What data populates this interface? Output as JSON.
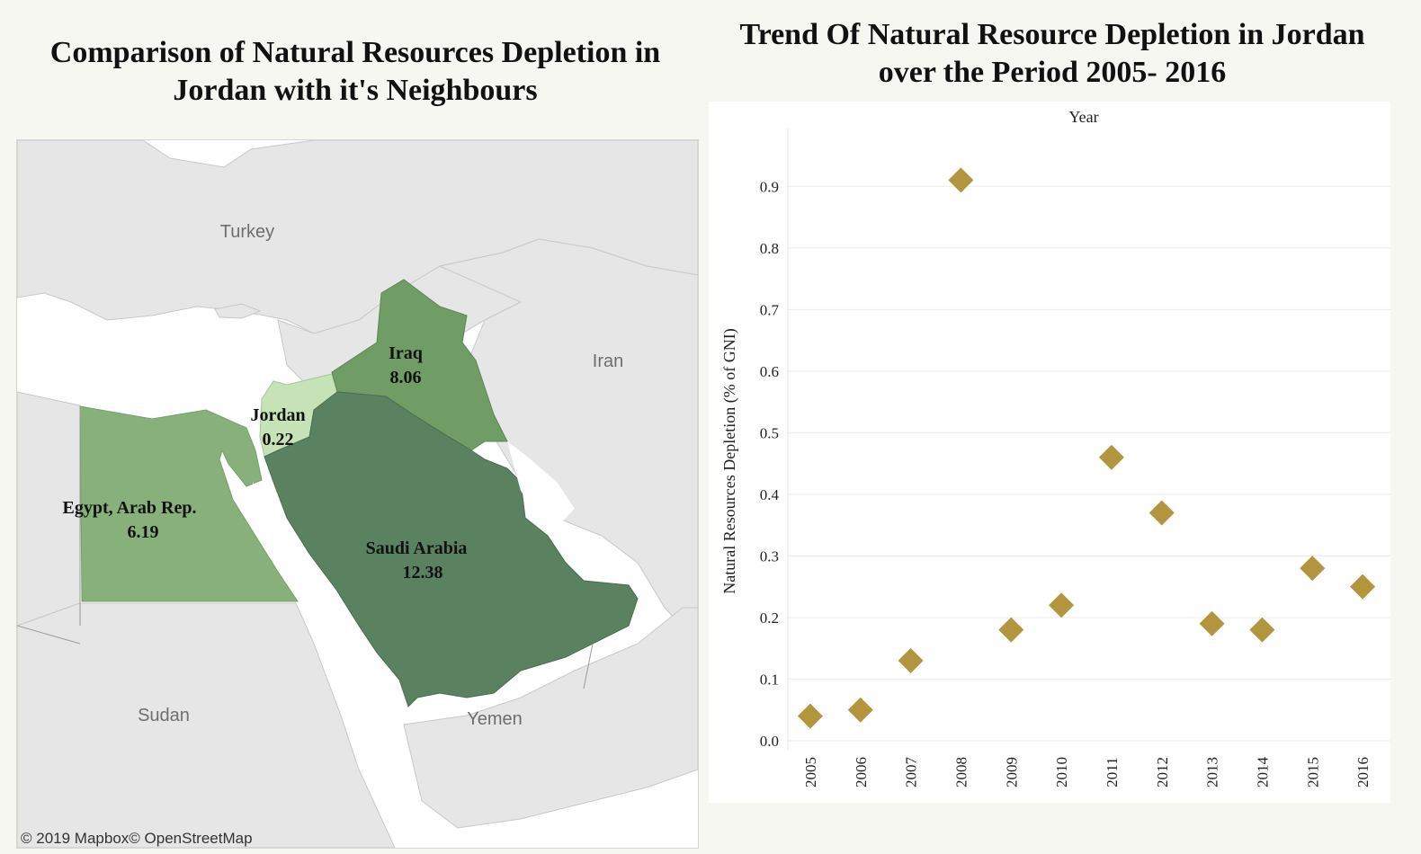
{
  "map": {
    "title": "Comparison of Natural Resources Depletion in Jordan with it's Neighbours",
    "base_labels": {
      "turkey": "Turkey",
      "iran": "Iran",
      "sudan": "Sudan",
      "yemen": "Yemen"
    },
    "attribution": "© 2019 Mapbox© OpenStreetMap",
    "regions": [
      {
        "name": "Iraq",
        "value": "8.06",
        "color": "#6f9d65"
      },
      {
        "name": "Jordan",
        "value": "0.22",
        "color": "#c6e2b7"
      },
      {
        "name": "Egypt, Arab Rep.",
        "value": "6.19",
        "color": "#88b07a"
      },
      {
        "name": "Saudi Arabia",
        "value": "12.38",
        "color": "#5a8160"
      }
    ]
  },
  "chart_data": {
    "type": "scatter",
    "title": "Trend Of Natural Resource Depletion in Jordan over the Period 2005- 2016",
    "xlabel": "Year",
    "ylabel": "Natural Resources Depletion (% of GNI)",
    "categories": [
      "2005",
      "2006",
      "2007",
      "2008",
      "2009",
      "2010",
      "2011",
      "2012",
      "2013",
      "2014",
      "2015",
      "2016"
    ],
    "values": [
      0.04,
      0.05,
      0.13,
      0.91,
      0.18,
      0.22,
      0.46,
      0.37,
      0.19,
      0.18,
      0.28,
      0.25
    ],
    "yticks": [
      "0.0",
      "0.1",
      "0.2",
      "0.3",
      "0.4",
      "0.5",
      "0.6",
      "0.7",
      "0.8",
      "0.9"
    ],
    "ylim": [
      0,
      0.95
    ],
    "marker": "diamond",
    "marker_color": "#b3953d",
    "grid": true
  }
}
